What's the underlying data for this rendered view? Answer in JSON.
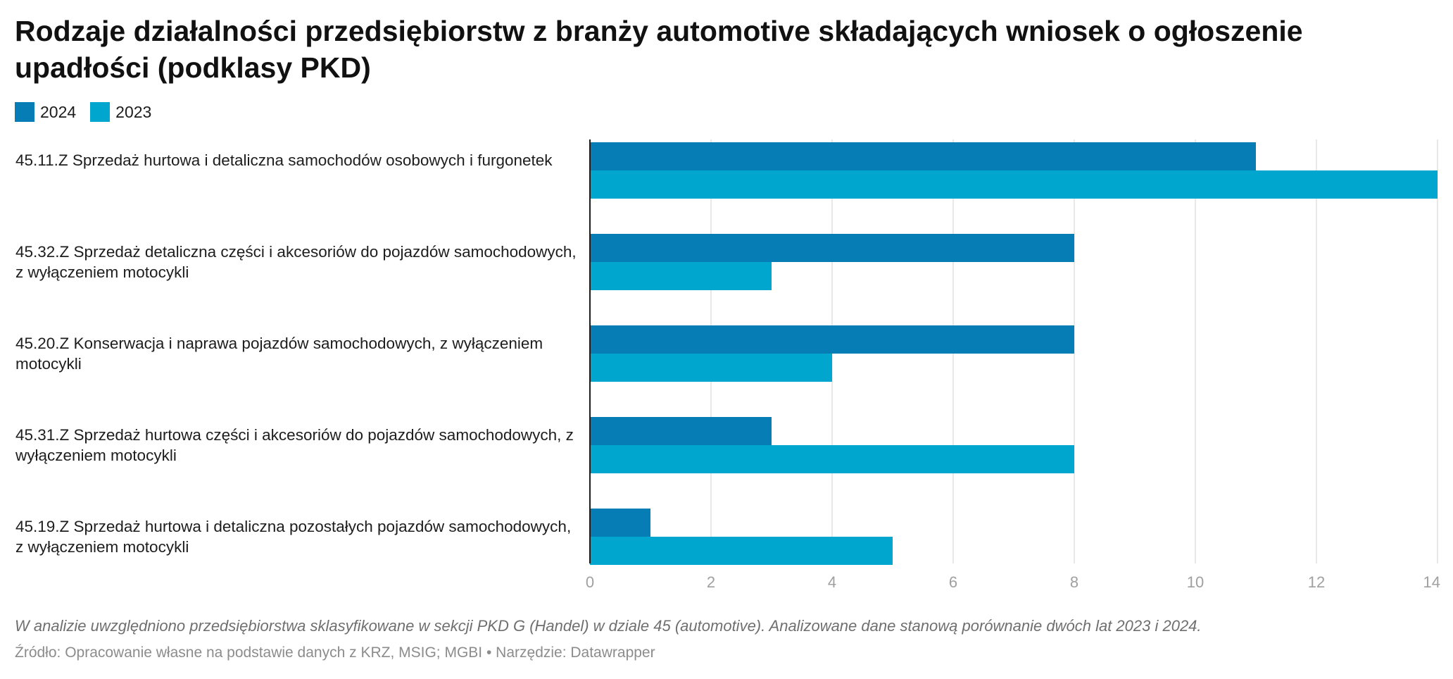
{
  "title": "Rodzaje działalności przedsiębiorstw z branży automotive składających wniosek o ogłoszenie upadłości (podklasy PKD)",
  "notes": "W analizie uwzględniono przedsiębiorstwa sklasyfikowane w sekcji PKD G (Handel) w dziale 45 (automotive). Analizowane dane stanową porównanie dwóch lat 2023 i 2024.",
  "source": {
    "text": "Źródło: Opracowanie własne na podstawie danych z KRZ, MSIG; MGBI",
    "separator": "•",
    "tool": "Narzędzie: Datawrapper"
  },
  "colors": {
    "series_2024": "#077db6",
    "series_2023": "#00a6cd",
    "grid": "#e0e0e0",
    "axis": "#1d1d1d",
    "tick": "#a0a0a0"
  },
  "chart_data": {
    "type": "bar",
    "orientation": "horizontal",
    "title": "Rodzaje działalności przedsiębiorstw z branży automotive składających wniosek o ogłoszenie upadłości (podklasy PKD)",
    "categories": [
      "45.11.Z Sprzedaż hurtowa i detaliczna samochodów osobowych i furgonetek",
      "45.32.Z Sprzedaż detaliczna części i akcesoriów do pojazdów samochodowych, z wyłączeniem motocykli",
      "45.20.Z Konserwacja i naprawa pojazdów samochodowych, z wyłączeniem motocykli",
      "45.31.Z Sprzedaż hurtowa części i akcesoriów do pojazdów samochodowych, z wyłączeniem motocykli",
      "45.19.Z Sprzedaż hurtowa i detaliczna pozostałych pojazdów samochodowych, z wyłączeniem motocykli"
    ],
    "series": [
      {
        "name": "2024",
        "values": [
          11,
          8,
          8,
          3,
          1
        ]
      },
      {
        "name": "2023",
        "values": [
          14,
          3,
          4,
          8,
          5
        ]
      }
    ],
    "xlim": [
      0,
      14
    ],
    "xticks": [
      0,
      2,
      4,
      6,
      8,
      10,
      12,
      14
    ],
    "grid": true,
    "legend_position": "top-left"
  }
}
